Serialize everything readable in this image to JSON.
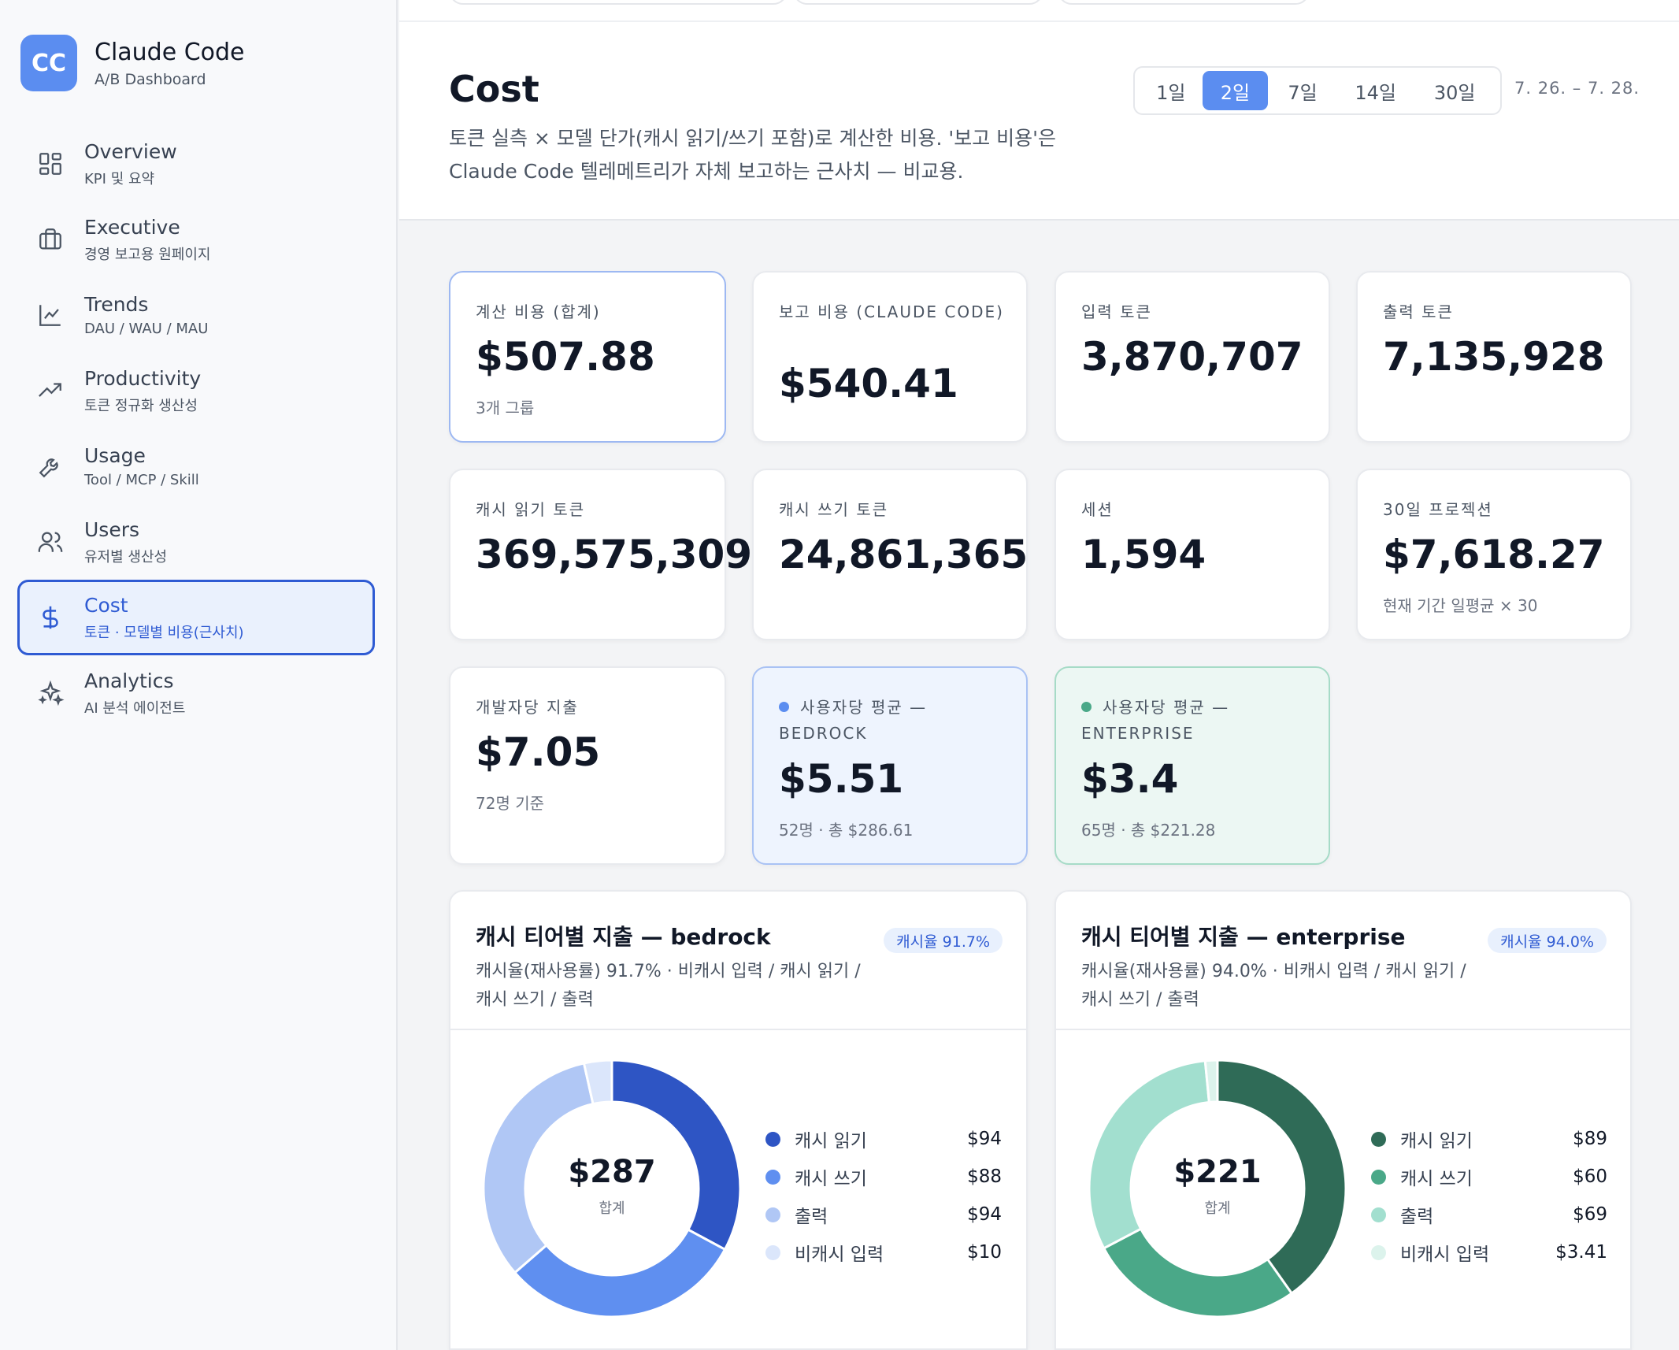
{
  "brand": {
    "logo": "CC",
    "title": "Claude Code",
    "subtitle": "A/B Dashboard"
  },
  "nav": [
    {
      "label": "Overview",
      "sub": "KPI 및 요약",
      "icon": "grid-icon"
    },
    {
      "label": "Executive",
      "sub": "경영 보고용 원페이지",
      "icon": "briefcase-icon"
    },
    {
      "label": "Trends",
      "sub": "DAU / WAU / MAU",
      "icon": "line-chart-icon"
    },
    {
      "label": "Productivity",
      "sub": "토큰 정규화 생산성",
      "icon": "trending-up-icon"
    },
    {
      "label": "Usage",
      "sub": "Tool / MCP / Skill",
      "icon": "wrench-icon"
    },
    {
      "label": "Users",
      "sub": "유저별 생산성",
      "icon": "users-icon"
    },
    {
      "label": "Cost",
      "sub": "토큰 · 모델별 비용(근사치)",
      "icon": "dollar-icon",
      "active": true
    },
    {
      "label": "Analytics",
      "sub": "AI 분석 에이전트",
      "icon": "sparkle-icon"
    }
  ],
  "header": {
    "title": "Cost",
    "description": "토큰 실측 × 모델 단가(캐시 읽기/쓰기 포함)로 계산한 비용. '보고 비용'은 Claude Code 텔레메트리가 자체 보고하는 근사치 — 비교용.",
    "ranges": [
      "1일",
      "2일",
      "7일",
      "14일",
      "30일"
    ],
    "active_range": "2일",
    "date_range": "7. 26. – 7. 28."
  },
  "kpis": {
    "computed_cost": {
      "label": "계산 비용 (합계)",
      "value": "$507.88",
      "note": "3개 그룹"
    },
    "reported_cost": {
      "label": "보고 비용 (CLAUDE CODE)",
      "value": "$540.41"
    },
    "input_tokens": {
      "label": "입력 토큰",
      "value": "3,870,707"
    },
    "output_tokens": {
      "label": "출력 토큰",
      "value": "7,135,928"
    },
    "cache_read_tokens": {
      "label": "캐시 읽기 토큰",
      "value": "369,575,309"
    },
    "cache_write_tokens": {
      "label": "캐시 쓰기 토큰",
      "value": "24,861,365"
    },
    "sessions": {
      "label": "세션",
      "value": "1,594"
    },
    "projection": {
      "label": "30일 프로젝션",
      "value": "$7,618.27",
      "note": "현재 기간 일평균 × 30"
    },
    "per_dev": {
      "label": "개발자당 지출",
      "value": "$7.05",
      "note": "72명 기준"
    },
    "per_user_bedrock": {
      "label": "사용자당 평균 — BEDROCK",
      "value": "$5.51",
      "note": "52명 · 총 $286.61",
      "dot_color": "#5b8df0"
    },
    "per_user_enterprise": {
      "label": "사용자당 평균 — ENTERPRISE",
      "value": "$3.4",
      "note": "65명 · 총 $221.28",
      "dot_color": "#4aa888"
    }
  },
  "panels": {
    "bedrock": {
      "title": "캐시 티어별 지출 — bedrock",
      "badge": "캐시율 91.7%",
      "description": "캐시율(재사용률) 91.7% · 비캐시 입력 / 캐시 읽기 / 캐시 쓰기 / 출력",
      "total": "$287",
      "total_label": "합계",
      "legend": [
        {
          "name": "캐시 읽기",
          "value": "$94",
          "color": "#2e55c4"
        },
        {
          "name": "캐시 쓰기",
          "value": "$88",
          "color": "#5f8ff0"
        },
        {
          "name": "출력",
          "value": "$94",
          "color": "#b0c7f5"
        },
        {
          "name": "비캐시 입력",
          "value": "$10",
          "color": "#dbe6fb"
        }
      ]
    },
    "enterprise": {
      "title": "캐시 티어별 지출 — enterprise",
      "badge": "캐시율 94.0%",
      "description": "캐시율(재사용률) 94.0% · 비캐시 입력 / 캐시 읽기 / 캐시 쓰기 / 출력",
      "total": "$221",
      "total_label": "합계",
      "legend": [
        {
          "name": "캐시 읽기",
          "value": "$89",
          "color": "#2f6b57"
        },
        {
          "name": "캐시 쓰기",
          "value": "$60",
          "color": "#4aa888"
        },
        {
          "name": "출력",
          "value": "$69",
          "color": "#a2dfcf"
        },
        {
          "name": "비캐시 입력",
          "value": "$3.41",
          "color": "#dcf3ec"
        }
      ]
    }
  },
  "chart_data": [
    {
      "type": "pie",
      "title": "캐시 티어별 지출 — bedrock",
      "categories": [
        "캐시 읽기",
        "캐시 쓰기",
        "출력",
        "비캐시 입력"
      ],
      "values": [
        94,
        88,
        94,
        10
      ],
      "colors": [
        "#2e55c4",
        "#5f8ff0",
        "#b0c7f5",
        "#dbe6fb"
      ],
      "total": 287
    },
    {
      "type": "pie",
      "title": "캐시 티어별 지출 — enterprise",
      "categories": [
        "캐시 읽기",
        "캐시 쓰기",
        "출력",
        "비캐시 입력"
      ],
      "values": [
        89,
        60,
        69,
        3.41
      ],
      "colors": [
        "#2f6b57",
        "#4aa888",
        "#a2dfcf",
        "#dcf3ec"
      ],
      "total": 221
    }
  ]
}
